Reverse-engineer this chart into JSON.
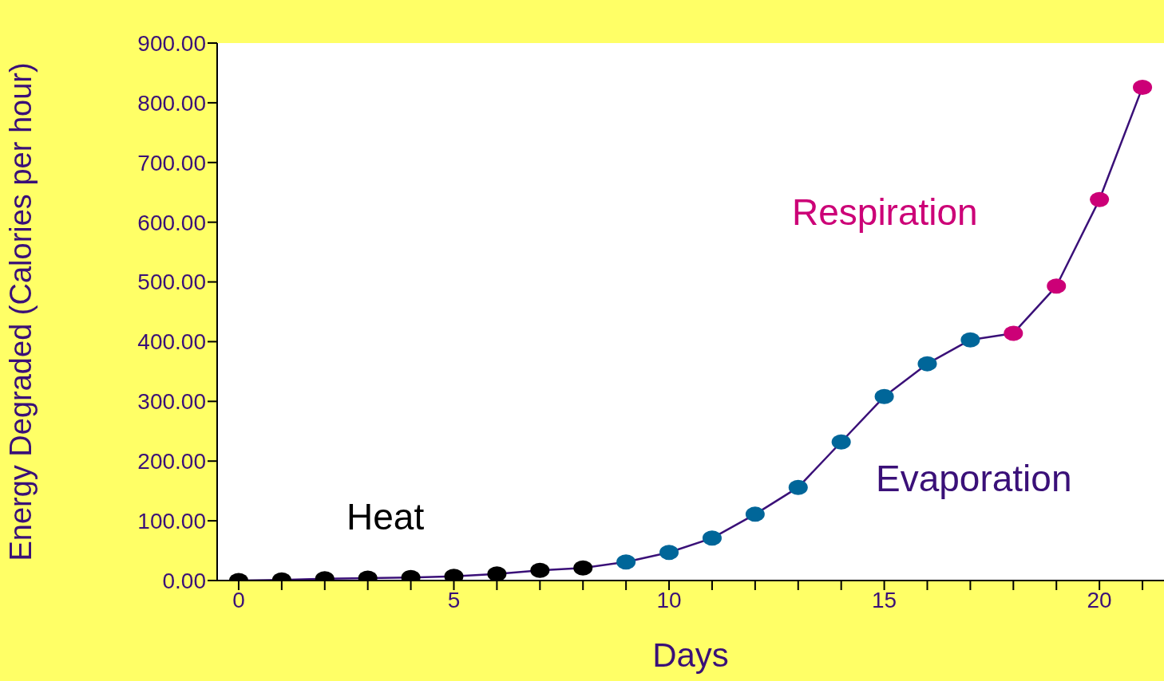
{
  "chart_data": {
    "type": "line",
    "xlabel": "Days",
    "ylabel": "Energy Degraded (Calories per hour)",
    "x": [
      0,
      1,
      2,
      3,
      4,
      5,
      6,
      7,
      8,
      9,
      10,
      11,
      12,
      13,
      14,
      15,
      16,
      17,
      18,
      19,
      20,
      21
    ],
    "series": [
      {
        "color": "#3a1078",
        "values": [
          0,
          1,
          3,
          4,
          5,
          7,
          11,
          17,
          21,
          31,
          47,
          71,
          111,
          156,
          232,
          308,
          363,
          403,
          414,
          493,
          638,
          826
        ],
        "colors": [
          "#000000",
          "#000000",
          "#000000",
          "#000000",
          "#000000",
          "#000000",
          "#000000",
          "#000000",
          "#000000",
          "#006699",
          "#006699",
          "#006699",
          "#006699",
          "#006699",
          "#006699",
          "#006699",
          "#006699",
          "#006699",
          "#cc0077",
          "#cc0077",
          "#cc0077",
          "#cc0077"
        ]
      }
    ],
    "marker": "circle",
    "line_style": "solid",
    "grid": false,
    "legend": false,
    "xlim": [
      -0.5,
      21.5
    ],
    "xticks": [
      0,
      {
        "value": 1,
        "label": null
      },
      {
        "value": 2,
        "label": null
      },
      {
        "value": 3,
        "label": null
      },
      {
        "value": 4,
        "label": null
      },
      5,
      {
        "value": 6,
        "label": null
      },
      {
        "value": 7,
        "label": null
      },
      {
        "value": 8,
        "label": null
      },
      {
        "value": 9,
        "label": null
      },
      10,
      {
        "value": 11,
        "label": null
      },
      {
        "value": 12,
        "label": null
      },
      {
        "value": 13,
        "label": null
      },
      {
        "value": 14,
        "label": null
      },
      15,
      {
        "value": 16,
        "label": null
      },
      {
        "value": 17,
        "label": null
      },
      {
        "value": 18,
        "label": null
      },
      {
        "value": 19,
        "label": null
      },
      20,
      {
        "value": 21,
        "label": null
      }
    ],
    "ylim": [
      0,
      900
    ],
    "yticks": [
      {
        "value": 0,
        "label": "0.00"
      },
      {
        "value": 100,
        "label": "100.00"
      },
      {
        "value": 200,
        "label": "200.00"
      },
      {
        "value": 300,
        "label": "300.00"
      },
      {
        "value": 400,
        "label": "400.00"
      },
      {
        "value": 500,
        "label": "500.00"
      },
      {
        "value": 600,
        "label": "600.00"
      },
      {
        "value": 700,
        "label": "700.00"
      },
      {
        "value": 800,
        "label": "800.00"
      },
      {
        "value": 900,
        "label": "900.00"
      }
    ],
    "annotations": [
      "Heat",
      "Evaporation",
      "Respiration"
    ]
  }
}
